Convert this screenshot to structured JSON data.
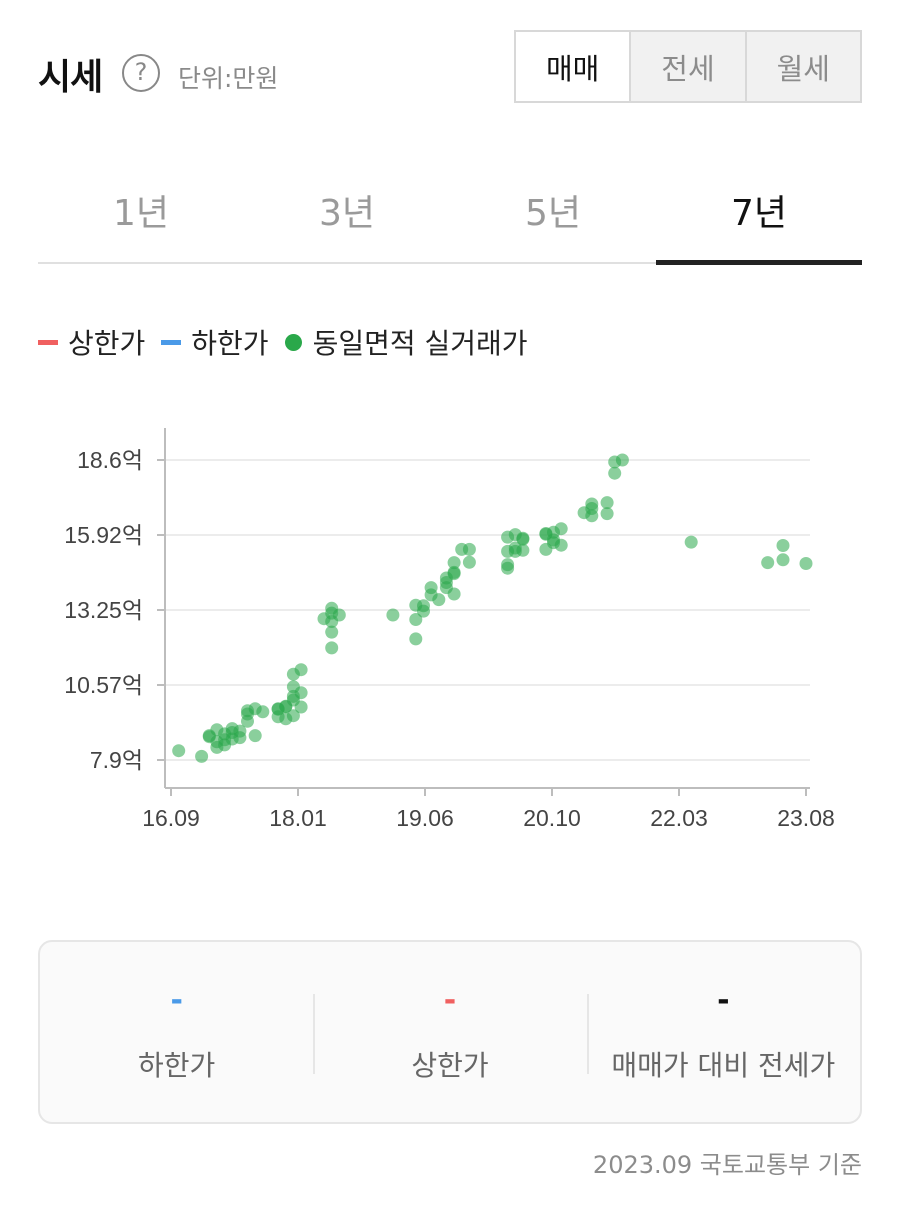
{
  "header": {
    "title": "시세",
    "help_icon": "?",
    "unit": "단위:만원"
  },
  "deal_types": [
    {
      "label": "매매",
      "active": true
    },
    {
      "label": "전세",
      "active": false
    },
    {
      "label": "월세",
      "active": false
    }
  ],
  "periods": [
    {
      "label": "1년",
      "active": false
    },
    {
      "label": "3년",
      "active": false
    },
    {
      "label": "5년",
      "active": false
    },
    {
      "label": "7년",
      "active": true
    }
  ],
  "legend": [
    {
      "label": "상한가",
      "shape": "dash",
      "color": "#f06060"
    },
    {
      "label": "하한가",
      "shape": "dash",
      "color": "#4a9ae8"
    },
    {
      "label": "동일면적 실거래가",
      "shape": "dot",
      "color": "#2aa84a"
    }
  ],
  "chart_data": {
    "type": "scatter",
    "x_ticks": [
      "16.09",
      "18.01",
      "19.06",
      "20.10",
      "22.03",
      "23.08"
    ],
    "y_ticks": [
      "18.6억",
      "15.92억",
      "13.25억",
      "10.57억",
      "7.9억"
    ],
    "x_range_months": [
      "2016-09",
      "2023-08"
    ],
    "ylim": [
      7.9,
      18.6
    ],
    "color": "#2aa84a",
    "grid": true,
    "points": [
      [
        "2016-10",
        8.23
      ],
      [
        "2017-01",
        8.03
      ],
      [
        "2017-02",
        8.77
      ],
      [
        "2017-02",
        8.73
      ],
      [
        "2017-03",
        8.35
      ],
      [
        "2017-03",
        8.98
      ],
      [
        "2017-03",
        8.55
      ],
      [
        "2017-04",
        8.44
      ],
      [
        "2017-04",
        8.62
      ],
      [
        "2017-04",
        8.83
      ],
      [
        "2017-05",
        8.88
      ],
      [
        "2017-05",
        9.02
      ],
      [
        "2017-05",
        8.65
      ],
      [
        "2017-06",
        8.7
      ],
      [
        "2017-06",
        8.93
      ],
      [
        "2017-07",
        9.28
      ],
      [
        "2017-07",
        9.66
      ],
      [
        "2017-07",
        9.54
      ],
      [
        "2017-08",
        8.77
      ],
      [
        "2017-08",
        9.73
      ],
      [
        "2017-09",
        9.62
      ],
      [
        "2017-11",
        9.44
      ],
      [
        "2017-11",
        9.73
      ],
      [
        "2017-11",
        9.71
      ],
      [
        "2017-12",
        9.82
      ],
      [
        "2017-12",
        9.8
      ],
      [
        "2017-12",
        9.37
      ],
      [
        "2018-01",
        10.04
      ],
      [
        "2018-01",
        10.17
      ],
      [
        "2018-01",
        10.96
      ],
      [
        "2018-01",
        10.51
      ],
      [
        "2018-01",
        9.48
      ],
      [
        "2018-02",
        11.12
      ],
      [
        "2018-02",
        10.3
      ],
      [
        "2018-02",
        9.79
      ],
      [
        "2018-05",
        12.94
      ],
      [
        "2018-06",
        11.9
      ],
      [
        "2018-06",
        12.46
      ],
      [
        "2018-06",
        12.84
      ],
      [
        "2018-06",
        13.14
      ],
      [
        "2018-06",
        13.31
      ],
      [
        "2018-07",
        13.07
      ],
      [
        "2019-02",
        13.07
      ],
      [
        "2019-05",
        12.22
      ],
      [
        "2019-05",
        12.91
      ],
      [
        "2019-05",
        13.42
      ],
      [
        "2019-06",
        13.21
      ],
      [
        "2019-06",
        13.4
      ],
      [
        "2019-07",
        13.79
      ],
      [
        "2019-07",
        14.05
      ],
      [
        "2019-08",
        13.62
      ],
      [
        "2019-09",
        14.05
      ],
      [
        "2019-09",
        14.23
      ],
      [
        "2019-09",
        14.39
      ],
      [
        "2019-10",
        13.82
      ],
      [
        "2019-10",
        14.55
      ],
      [
        "2019-10",
        14.94
      ],
      [
        "2019-10",
        14.59
      ],
      [
        "2019-11",
        15.41
      ],
      [
        "2019-12",
        15.41
      ],
      [
        "2019-12",
        14.95
      ],
      [
        "2020-05",
        14.74
      ],
      [
        "2020-05",
        14.87
      ],
      [
        "2020-05",
        15.34
      ],
      [
        "2020-05",
        15.85
      ],
      [
        "2020-06",
        15.94
      ],
      [
        "2020-06",
        15.34
      ],
      [
        "2020-06",
        15.46
      ],
      [
        "2020-07",
        15.81
      ],
      [
        "2020-07",
        15.38
      ],
      [
        "2020-07",
        15.77
      ],
      [
        "2020-10",
        15.41
      ],
      [
        "2020-10",
        15.98
      ],
      [
        "2020-10",
        15.95
      ],
      [
        "2020-11",
        16.02
      ],
      [
        "2020-11",
        15.65
      ],
      [
        "2020-11",
        15.75
      ],
      [
        "2020-12",
        16.15
      ],
      [
        "2020-12",
        15.56
      ],
      [
        "2021-03",
        16.72
      ],
      [
        "2021-04",
        16.61
      ],
      [
        "2021-04",
        17.03
      ],
      [
        "2021-04",
        16.87
      ],
      [
        "2021-06",
        16.69
      ],
      [
        "2021-06",
        17.08
      ],
      [
        "2021-07",
        18.13
      ],
      [
        "2021-07",
        18.53
      ],
      [
        "2021-08",
        18.6
      ],
      [
        "2022-05",
        15.67
      ],
      [
        "2023-03",
        14.94
      ],
      [
        "2023-05",
        15.55
      ],
      [
        "2023-05",
        15.04
      ],
      [
        "2023-08",
        14.91
      ]
    ]
  },
  "summary": [
    {
      "value": "-",
      "label": "하한가",
      "color": "#4a9ae8"
    },
    {
      "value": "-",
      "label": "상한가",
      "color": "#f06060"
    },
    {
      "value": "-",
      "label": "매매가 대비 전세가",
      "color": "#111111"
    }
  ],
  "footer": {
    "note": "2023.09 국토교통부 기준"
  }
}
